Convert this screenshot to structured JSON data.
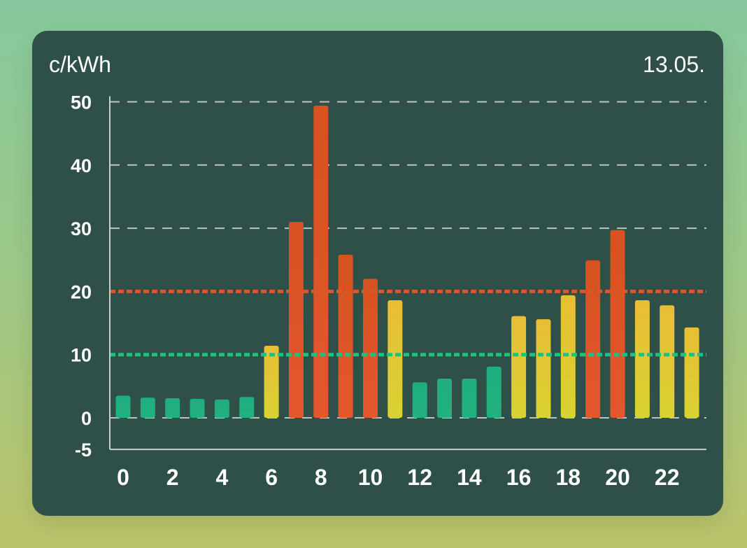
{
  "header": {
    "unit_label": "c/kWh",
    "date_label": "13.05."
  },
  "colors": {
    "background_top": "#86c99e",
    "background_bottom": "#bcc36a",
    "card": "#2e5049",
    "green": "#1fae7f",
    "yellow": "#e8c23a",
    "orange_red": "#de5526",
    "grid": "#b9c3c0",
    "axis": "#c8d0ce"
  },
  "chart_data": {
    "type": "bar",
    "xlabel": "",
    "ylabel": "c/kWh",
    "categories": [
      0,
      1,
      2,
      3,
      4,
      5,
      6,
      7,
      8,
      9,
      10,
      11,
      12,
      13,
      14,
      15,
      16,
      17,
      18,
      19,
      20,
      21,
      22,
      23
    ],
    "values": [
      3.5,
      3.2,
      3.1,
      3.0,
      2.9,
      3.3,
      11.4,
      31.0,
      49.4,
      25.8,
      22.0,
      18.6,
      5.6,
      6.2,
      6.2,
      8.1,
      16.1,
      15.6,
      19.4,
      24.9,
      29.7,
      18.6,
      17.8,
      14.3
    ],
    "bar_colors": [
      "green",
      "green",
      "green",
      "green",
      "green",
      "green",
      "yellow",
      "orange_red",
      "orange_red",
      "orange_red",
      "orange_red",
      "yellow",
      "green",
      "green",
      "green",
      "green",
      "yellow",
      "yellow",
      "yellow",
      "orange_red",
      "orange_red",
      "yellow",
      "yellow",
      "yellow"
    ],
    "ylim": [
      -5,
      50
    ],
    "y_ticks": [
      "-5",
      "0",
      "10",
      "20",
      "30",
      "40",
      "50"
    ],
    "x_ticks": [
      "0",
      "2",
      "4",
      "6",
      "8",
      "10",
      "12",
      "14",
      "16",
      "18",
      "20",
      "22"
    ],
    "grid": "horizontal dashed",
    "threshold_lines": [
      {
        "value": 20,
        "color": "#d8582a"
      },
      {
        "value": 10,
        "color": "#22c07e"
      }
    ]
  }
}
